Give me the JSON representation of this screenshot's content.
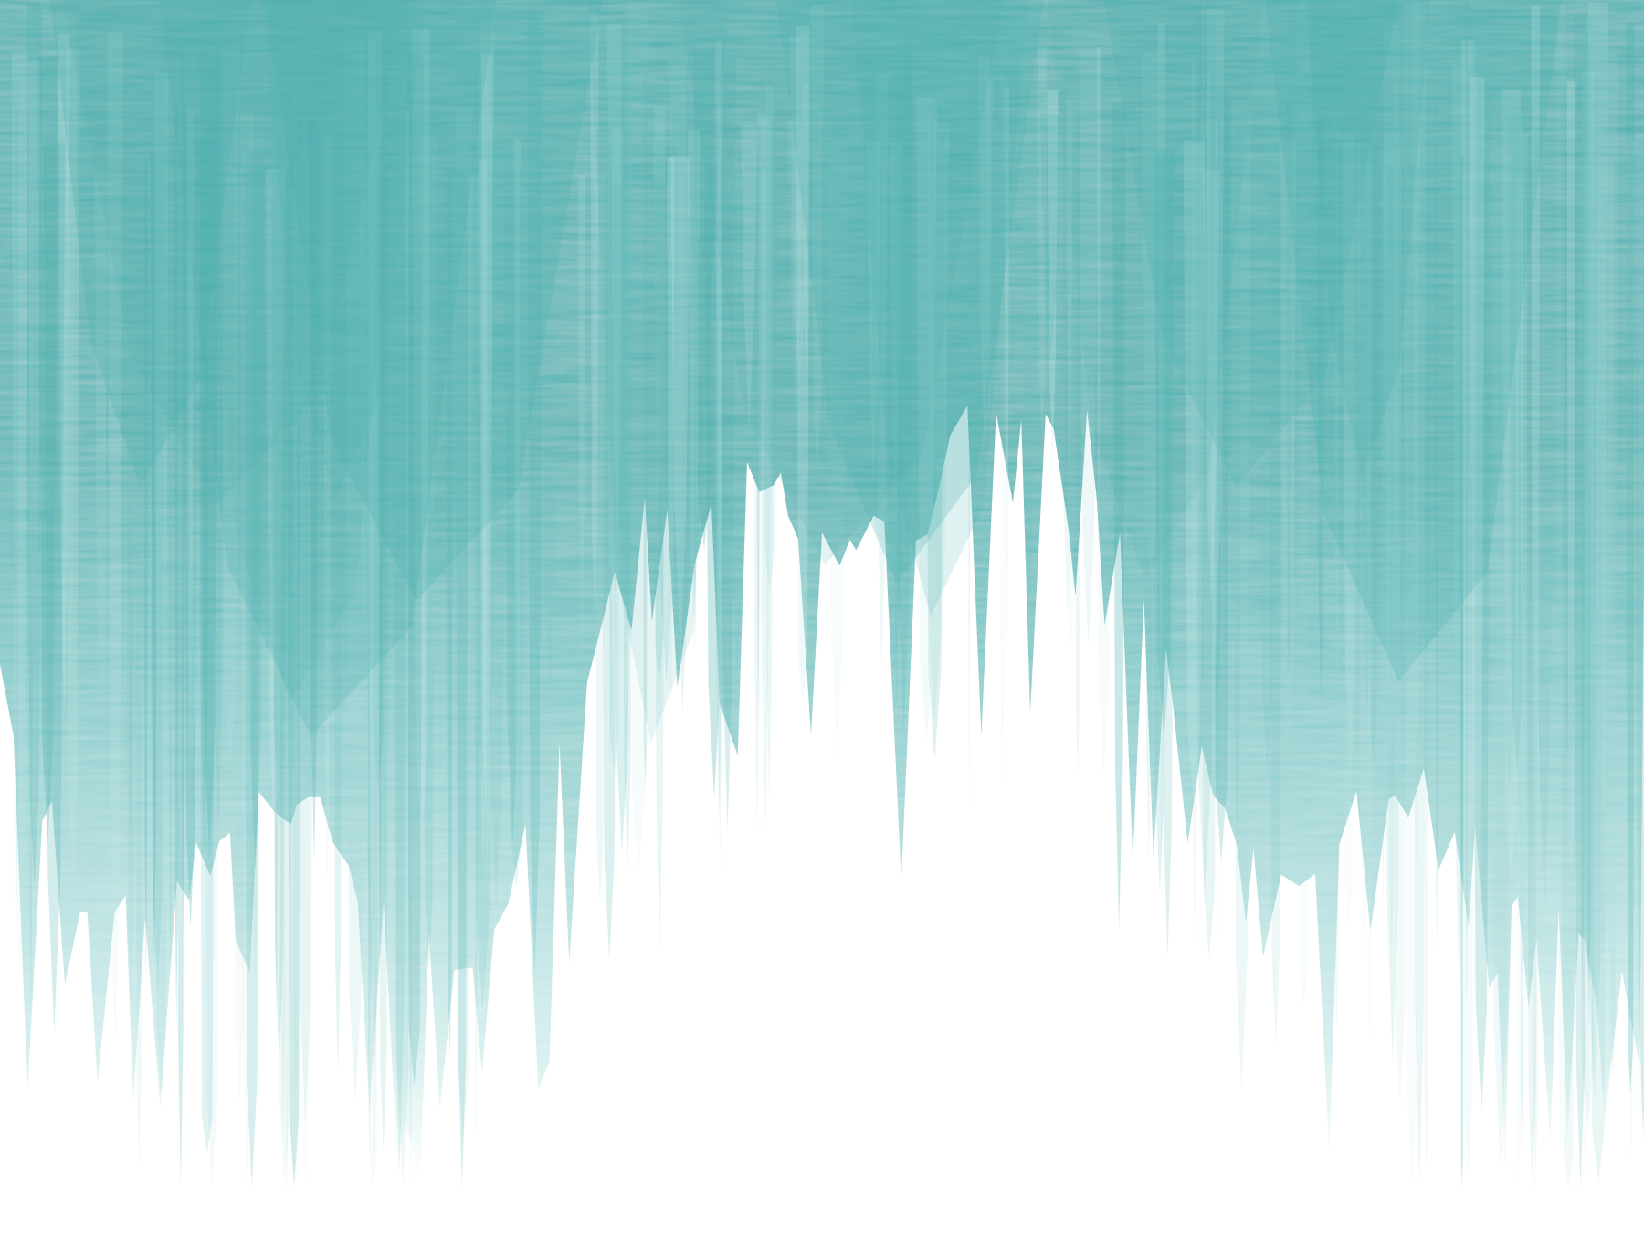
{
  "image": {
    "subject": "watercolor-brush-stroke-texture",
    "palette": {
      "deep_teal": "#4fb1b1",
      "mid_teal": "#6fc1c0",
      "light_teal": "#a9dada",
      "pale_teal": "#cfeceb",
      "paper": "#ffffff"
    }
  }
}
